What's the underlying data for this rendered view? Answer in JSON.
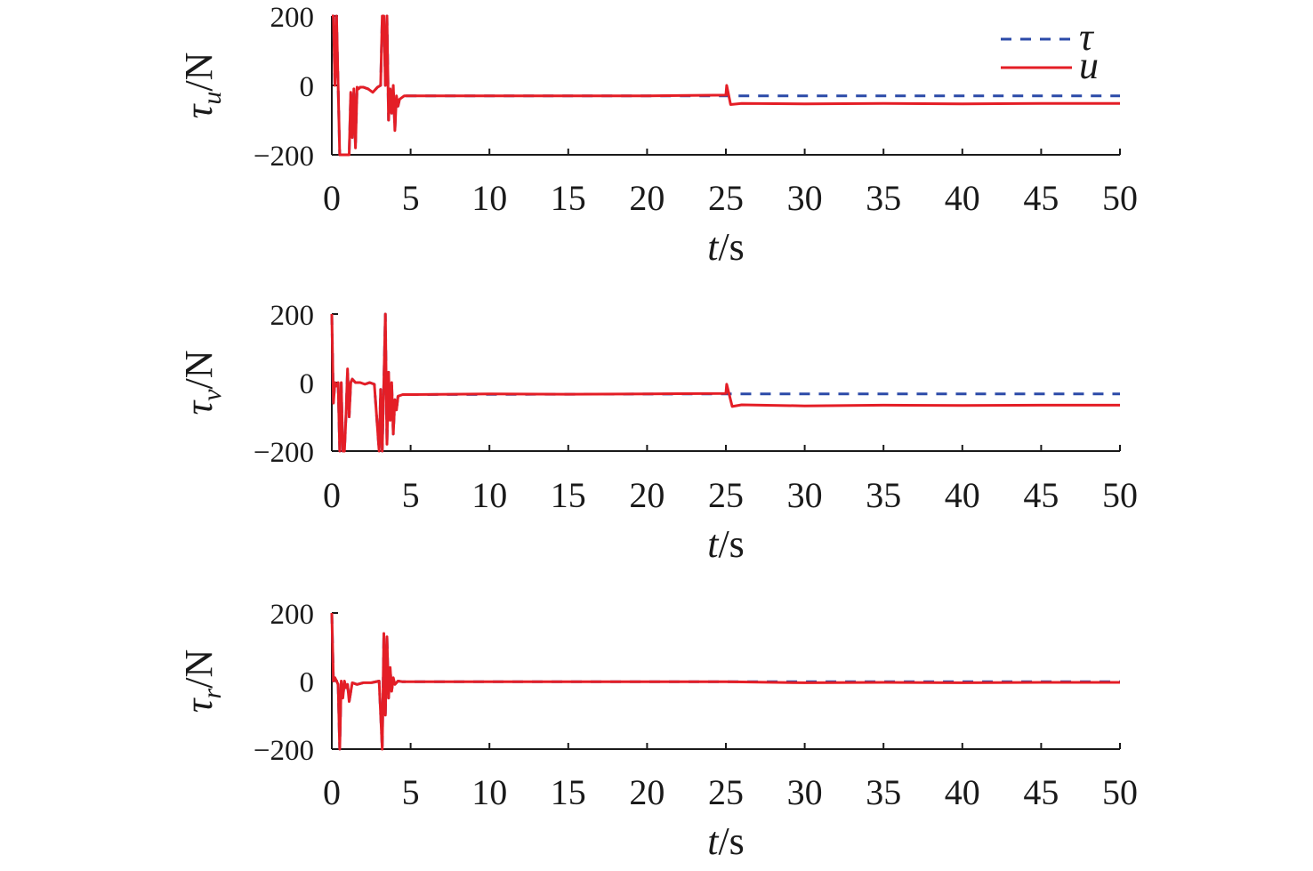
{
  "chart_data": [
    {
      "type": "line",
      "panel": "tau_u",
      "ylabel": {
        "symbol": "τ",
        "subscript": "u",
        "unit": "/N"
      },
      "xlabel": {
        "var": "t",
        "unit": "/s"
      },
      "xlim": [
        0,
        50
      ],
      "ylim": [
        -200,
        200
      ],
      "xticks": [
        0,
        5,
        10,
        15,
        20,
        25,
        30,
        35,
        40,
        45,
        50
      ],
      "yticks": [
        200,
        0,
        -200
      ],
      "ytick_labels": [
        "200",
        "0",
        "−200"
      ],
      "legend": {
        "position": "top-right",
        "entries": [
          "τ",
          "u"
        ]
      },
      "series": [
        {
          "name": "τ",
          "color": "#2b4aa8",
          "style": "dashed",
          "x": [
            0,
            0.1,
            0.2,
            0.3,
            0.4,
            0.5,
            0.6,
            0.8,
            0.9,
            1.0,
            1.1,
            1.2,
            1.3,
            1.4,
            1.5,
            1.6,
            1.7,
            1.8,
            1.9,
            2.0,
            2.3,
            2.6,
            2.9,
            3.1,
            3.2,
            3.3,
            3.4,
            3.5,
            3.6,
            3.7,
            3.8,
            3.9,
            4.0,
            4.1,
            4.2,
            4.3,
            4.6,
            5,
            25,
            25.1,
            50
          ],
          "y": [
            200,
            200,
            0,
            200,
            0,
            -200,
            -200,
            -200,
            -200,
            -200,
            -200,
            -20,
            -150,
            -10,
            -180,
            -5,
            -10,
            -5,
            -5,
            -5,
            -10,
            -20,
            -5,
            0,
            200,
            200,
            0,
            200,
            -100,
            -10,
            -80,
            0,
            -130,
            -30,
            -60,
            -40,
            -30,
            -30,
            -30,
            -30,
            -30
          ]
        },
        {
          "name": "u",
          "color": "#e41e26",
          "style": "solid",
          "x": [
            0,
            0.1,
            0.2,
            0.3,
            0.4,
            0.5,
            0.6,
            0.8,
            0.9,
            1.0,
            1.1,
            1.2,
            1.3,
            1.4,
            1.5,
            1.6,
            1.7,
            1.8,
            1.9,
            2.0,
            2.3,
            2.6,
            2.9,
            3.1,
            3.2,
            3.3,
            3.4,
            3.5,
            3.6,
            3.7,
            3.8,
            3.9,
            4.0,
            4.1,
            4.2,
            4.3,
            4.6,
            5,
            10,
            15,
            20,
            25,
            25.05,
            25.3,
            26,
            30,
            35,
            40,
            45,
            50
          ],
          "y": [
            200,
            200,
            0,
            200,
            0,
            -200,
            -200,
            -200,
            -200,
            -200,
            -200,
            -20,
            -150,
            -10,
            -180,
            -5,
            -10,
            -5,
            -5,
            -5,
            -10,
            -20,
            -5,
            0,
            200,
            200,
            0,
            200,
            -100,
            -10,
            -80,
            0,
            -130,
            -30,
            -60,
            -40,
            -30,
            -30,
            -30,
            -30,
            -30,
            -28,
            0,
            -55,
            -52,
            -53,
            -52,
            -53,
            -52,
            -52
          ]
        }
      ]
    },
    {
      "type": "line",
      "panel": "tau_v",
      "ylabel": {
        "symbol": "τ",
        "subscript": "v",
        "unit": "/N"
      },
      "xlabel": {
        "var": "t",
        "unit": "/s"
      },
      "xlim": [
        0,
        50
      ],
      "ylim": [
        -200,
        200
      ],
      "xticks": [
        0,
        5,
        10,
        15,
        20,
        25,
        30,
        35,
        40,
        45,
        50
      ],
      "yticks": [
        200,
        0,
        -200
      ],
      "ytick_labels": [
        "200",
        "0",
        "−200"
      ],
      "series": [
        {
          "name": "τ",
          "color": "#2b4aa8",
          "style": "dashed",
          "x": [
            0,
            0.1,
            0.2,
            0.3,
            0.4,
            0.5,
            0.6,
            0.7,
            0.8,
            0.9,
            1.0,
            1.1,
            1.2,
            1.3,
            1.5,
            1.8,
            2.1,
            2.4,
            2.7,
            3.0,
            3.1,
            3.2,
            3.3,
            3.4,
            3.5,
            3.6,
            3.7,
            3.8,
            3.9,
            4.0,
            4.1,
            4.2,
            4.5,
            5,
            25,
            50
          ],
          "y": [
            200,
            -60,
            0,
            -10,
            0,
            -200,
            0,
            -200,
            -200,
            -100,
            40,
            -100,
            0,
            10,
            0,
            0,
            -5,
            0,
            -5,
            -200,
            -20,
            -200,
            0,
            200,
            -180,
            30,
            -110,
            0,
            -150,
            -50,
            -80,
            -40,
            -35,
            -35,
            -33,
            -33
          ]
        },
        {
          "name": "u",
          "color": "#e41e26",
          "style": "solid",
          "x": [
            0,
            0.1,
            0.2,
            0.3,
            0.4,
            0.5,
            0.6,
            0.7,
            0.8,
            0.9,
            1.0,
            1.1,
            1.2,
            1.3,
            1.5,
            1.8,
            2.1,
            2.4,
            2.7,
            3.0,
            3.1,
            3.2,
            3.3,
            3.4,
            3.5,
            3.6,
            3.7,
            3.8,
            3.9,
            4.0,
            4.1,
            4.2,
            4.5,
            5,
            10,
            15,
            20,
            25,
            25.05,
            25.4,
            26,
            30,
            35,
            40,
            45,
            50
          ],
          "y": [
            200,
            -60,
            0,
            -10,
            0,
            -200,
            0,
            -200,
            -200,
            -100,
            40,
            -100,
            0,
            10,
            0,
            0,
            -5,
            0,
            -5,
            -200,
            -20,
            -200,
            0,
            200,
            -180,
            30,
            -110,
            0,
            -150,
            -50,
            -80,
            -40,
            -35,
            -35,
            -33,
            -34,
            -33,
            -32,
            -5,
            -70,
            -65,
            -68,
            -66,
            -67,
            -66,
            -66
          ]
        }
      ]
    },
    {
      "type": "line",
      "panel": "tau_r",
      "ylabel": {
        "symbol": "τ",
        "subscript": "r",
        "unit": "/N"
      },
      "xlabel": {
        "var": "t",
        "unit": "/s"
      },
      "xlim": [
        0,
        50
      ],
      "ylim": [
        -200,
        200
      ],
      "xticks": [
        0,
        5,
        10,
        15,
        20,
        25,
        30,
        35,
        40,
        45,
        50
      ],
      "yticks": [
        200,
        0,
        -200
      ],
      "ytick_labels": [
        "200",
        "0",
        "−200"
      ],
      "series": [
        {
          "name": "τ",
          "color": "#2b4aa8",
          "style": "dashed",
          "x": [
            0,
            0.1,
            0.2,
            0.3,
            0.4,
            0.5,
            0.6,
            0.7,
            0.8,
            0.9,
            1.0,
            1.1,
            1.3,
            1.6,
            2.0,
            2.5,
            3.0,
            3.2,
            3.3,
            3.4,
            3.5,
            3.6,
            3.7,
            3.8,
            3.9,
            4.0,
            4.2,
            4.5,
            5,
            50
          ],
          "y": [
            200,
            0,
            10,
            0,
            -10,
            -200,
            0,
            -50,
            0,
            -20,
            -10,
            -60,
            -5,
            -10,
            -5,
            -5,
            0,
            -200,
            140,
            -100,
            130,
            -50,
            40,
            -30,
            10,
            -10,
            0,
            -2,
            -2,
            -2
          ]
        },
        {
          "name": "u",
          "color": "#e41e26",
          "style": "solid",
          "x": [
            0,
            0.1,
            0.2,
            0.3,
            0.4,
            0.5,
            0.6,
            0.7,
            0.8,
            0.9,
            1.0,
            1.1,
            1.3,
            1.6,
            2.0,
            2.5,
            3.0,
            3.2,
            3.3,
            3.4,
            3.5,
            3.6,
            3.7,
            3.8,
            3.9,
            4.0,
            4.2,
            4.5,
            5,
            10,
            15,
            20,
            25,
            30,
            35,
            40,
            45,
            50
          ],
          "y": [
            200,
            0,
            10,
            0,
            -10,
            -200,
            0,
            -50,
            0,
            -20,
            -10,
            -60,
            -5,
            -10,
            -5,
            -5,
            0,
            -200,
            140,
            -100,
            130,
            -50,
            40,
            -30,
            10,
            -10,
            0,
            -2,
            -2,
            -2,
            -2,
            -2,
            -2,
            -5,
            -4,
            -5,
            -4,
            -4
          ]
        }
      ]
    }
  ]
}
